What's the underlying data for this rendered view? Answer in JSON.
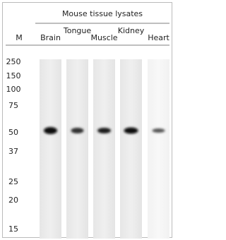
{
  "header": {
    "title": "Mouse tissue lysates",
    "marker_label": "M"
  },
  "lanes": [
    "Brain",
    "Tongue",
    "Muscle",
    "Kidney",
    "Heart"
  ],
  "markers": [
    "250",
    "150",
    "100",
    "75",
    "50",
    "37",
    "25",
    "20",
    "15"
  ]
}
